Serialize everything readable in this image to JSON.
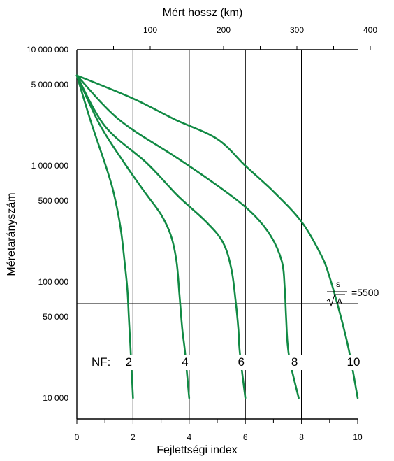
{
  "chart_data": {
    "type": "line",
    "title": "",
    "x_top_label": "Mért hossz (km)",
    "x_top_ticks": [
      "100",
      "200",
      "300",
      "400"
    ],
    "x_top_tick_values": [
      100,
      200,
      300,
      400
    ],
    "xlabel": "Fejlettségi index",
    "x_ticks": [
      "0",
      "2",
      "4",
      "6",
      "8",
      "10"
    ],
    "x_tick_values": [
      0,
      2,
      4,
      6,
      8,
      10
    ],
    "xlim": [
      0,
      10
    ],
    "ylabel": "Méretarányszám",
    "y_scale": "log",
    "y_ticks": [
      "10 000 000",
      "5 000 000",
      "1 000 000",
      "500 000",
      "100 000",
      "50 000",
      "10 000"
    ],
    "y_tick_values": [
      10000000,
      5000000,
      1000000,
      500000,
      100000,
      50000,
      10000
    ],
    "ylim": [
      8000,
      10000000
    ],
    "vertical_gridlines_at_x": [
      2,
      4,
      6,
      8
    ],
    "reference_line": {
      "y": 65000,
      "formula_numerator": "s",
      "formula_denominator": "A",
      "formula_value": "=5500"
    },
    "nf_prefix": "NF:",
    "series": [
      {
        "name": "2",
        "points": [
          [
            0,
            6000000
          ],
          [
            0.5,
            2400000
          ],
          [
            1.0,
            1050000
          ],
          [
            1.3,
            600000
          ],
          [
            1.55,
            300000
          ],
          [
            1.7,
            150000
          ],
          [
            1.8,
            85000
          ],
          [
            1.85,
            50000
          ],
          [
            1.9,
            30000
          ],
          [
            2.0,
            10000
          ]
        ]
      },
      {
        "name": "4",
        "points": [
          [
            0,
            6000000
          ],
          [
            0.8,
            2300000
          ],
          [
            1.7,
            1050000
          ],
          [
            2.4,
            600000
          ],
          [
            3.0,
            380000
          ],
          [
            3.35,
            250000
          ],
          [
            3.55,
            150000
          ],
          [
            3.65,
            80000
          ],
          [
            3.75,
            40000
          ],
          [
            3.85,
            25000
          ],
          [
            4.0,
            10000
          ]
        ]
      },
      {
        "name": "6",
        "points": [
          [
            0,
            6000000
          ],
          [
            1.0,
            2200000
          ],
          [
            2.5,
            1050000
          ],
          [
            3.6,
            550000
          ],
          [
            4.6,
            330000
          ],
          [
            5.2,
            220000
          ],
          [
            5.5,
            130000
          ],
          [
            5.65,
            70000
          ],
          [
            5.75,
            40000
          ],
          [
            5.8,
            25000
          ],
          [
            6.0,
            10000
          ]
        ]
      },
      {
        "name": "8",
        "points": [
          [
            0,
            6000000
          ],
          [
            1.5,
            2500000
          ],
          [
            3.5,
            1200000
          ],
          [
            5.1,
            650000
          ],
          [
            6.2,
            400000
          ],
          [
            6.9,
            250000
          ],
          [
            7.3,
            150000
          ],
          [
            7.4,
            90000
          ],
          [
            7.45,
            50000
          ],
          [
            7.5,
            30000
          ],
          [
            7.6,
            20000
          ],
          [
            7.9,
            10000
          ]
        ]
      },
      {
        "name": "10",
        "points": [
          [
            0,
            6000000
          ],
          [
            2.0,
            3800000
          ],
          [
            3.5,
            2500000
          ],
          [
            5.0,
            1700000
          ],
          [
            6.0,
            1000000
          ],
          [
            7.0,
            600000
          ],
          [
            8.0,
            330000
          ],
          [
            8.7,
            170000
          ],
          [
            9.0,
            110000
          ],
          [
            9.4,
            50000
          ],
          [
            9.7,
            25000
          ],
          [
            10.0,
            10000
          ]
        ]
      }
    ]
  }
}
